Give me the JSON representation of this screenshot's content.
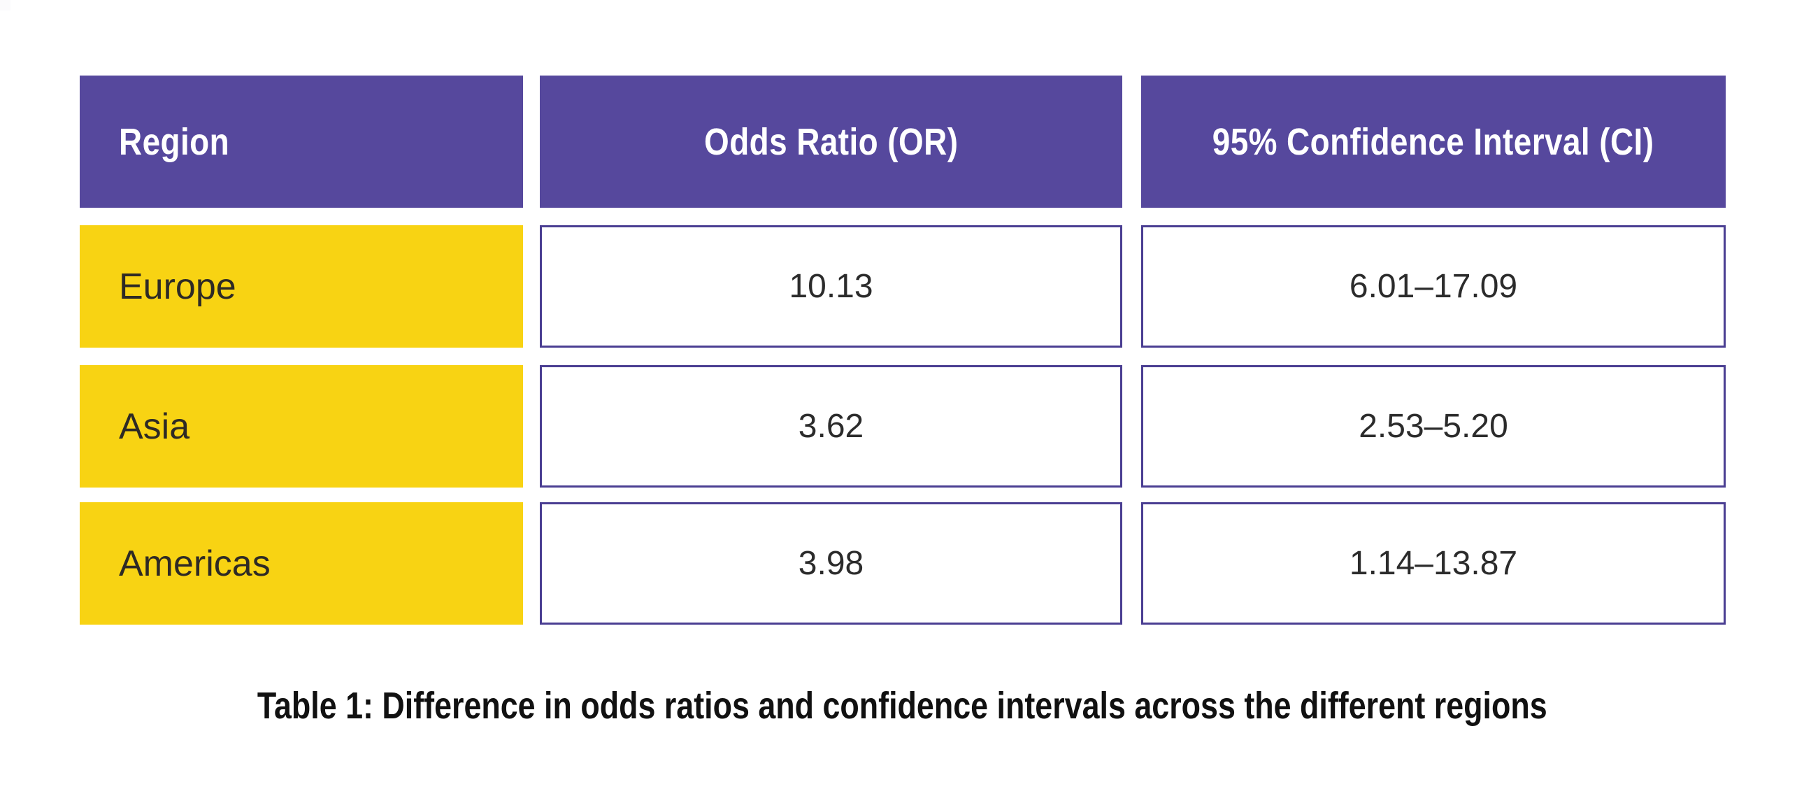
{
  "chart_data": {
    "type": "table",
    "columns": [
      {
        "key": "region",
        "header": "Region"
      },
      {
        "key": "or",
        "header": "Odds Ratio (OR)"
      },
      {
        "key": "ci",
        "header": "95% Confidence Interval (CI)"
      }
    ],
    "rows": [
      {
        "region": "Europe",
        "or": "10.13",
        "ci": "6.01–17.09"
      },
      {
        "region": "Asia",
        "or": "3.62",
        "ci": "2.53–5.20"
      },
      {
        "region": "Americas",
        "or": "3.98",
        "ci": "1.14–13.87"
      }
    ],
    "caption": "Table 1: Difference in odds ratios and confidence intervals across the different regions"
  },
  "colors": {
    "background": "#ffffff",
    "header_bg": "#56489d",
    "header_text": "#ffffff",
    "row_label_bg": "#f8d313",
    "row_label_text": "#2e2a25",
    "value_cell_bg": "#ffffff",
    "value_cell_border": "#4a3e92",
    "value_text": "#2b2b2b",
    "caption_text": "#111111",
    "corner_square": "#fbfafc"
  }
}
